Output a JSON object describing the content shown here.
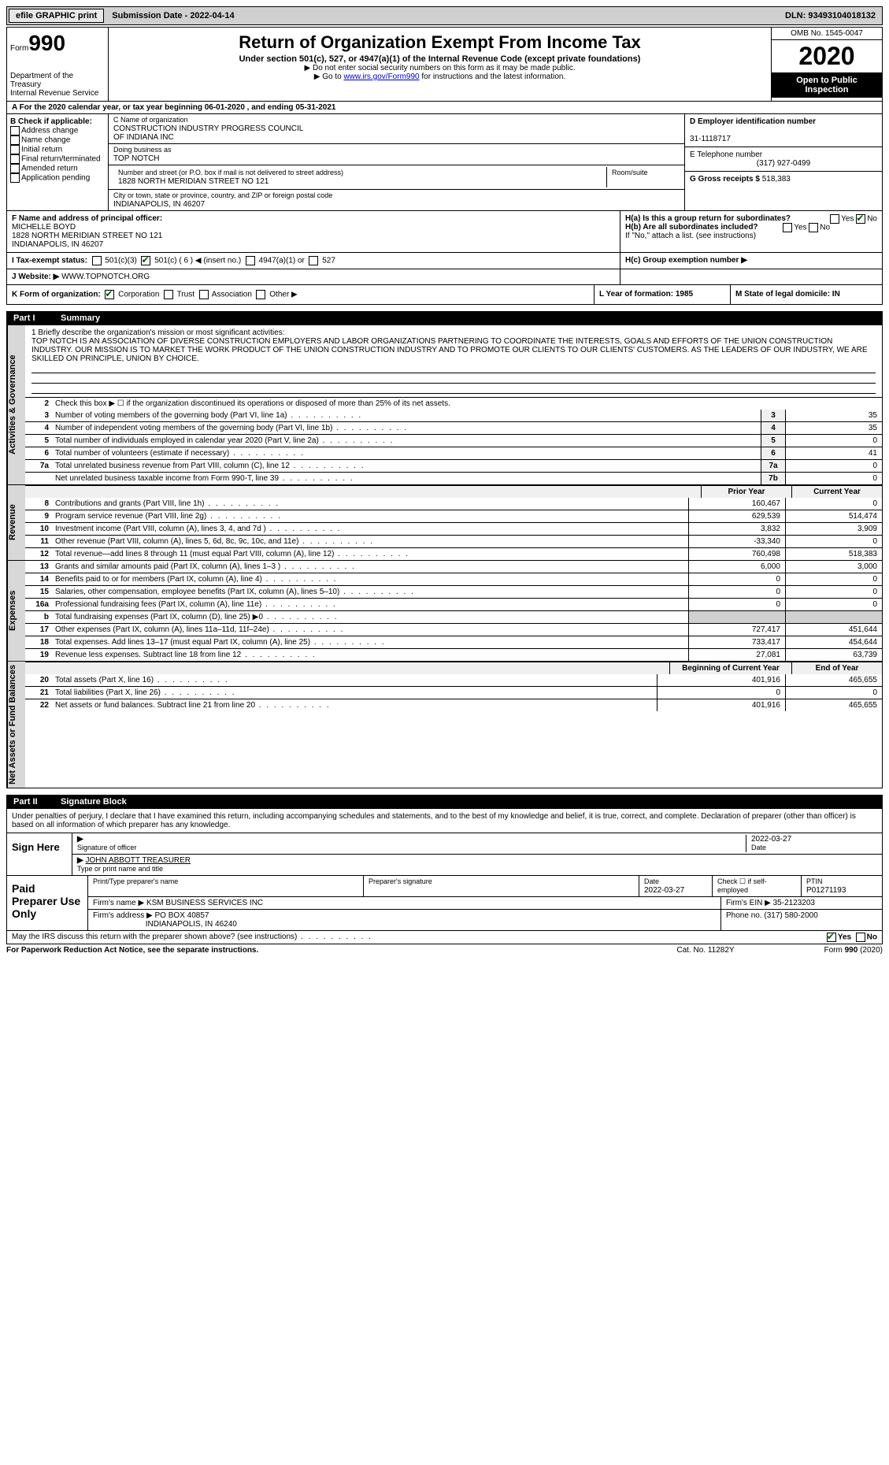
{
  "topbar": {
    "efile": "efile GRAPHIC print",
    "submission": "Submission Date - 2022-04-14",
    "dln": "DLN: 93493104018132"
  },
  "header": {
    "form_label": "Form",
    "form_no": "990",
    "dept": "Department of the Treasury",
    "irs": "Internal Revenue Service",
    "title": "Return of Organization Exempt From Income Tax",
    "sub1": "Under section 501(c), 527, or 4947(a)(1) of the Internal Revenue Code (except private foundations)",
    "sub2a": "▶ Do not enter social security numbers on this form as it may be made public.",
    "sub2b_pre": "▶ Go to ",
    "sub2b_link": "www.irs.gov/Form990",
    "sub2b_post": " for instructions and the latest information.",
    "omb": "OMB No. 1545-0047",
    "year": "2020",
    "inspection": "Open to Public Inspection"
  },
  "rowA": "A For the 2020 calendar year, or tax year beginning 06-01-2020   , and ending 05-31-2021",
  "colB": {
    "title": "B Check if applicable:",
    "items": [
      "Address change",
      "Name change",
      "Initial return",
      "Final return/terminated",
      "Amended return",
      "Application pending"
    ]
  },
  "colC": {
    "name_lbl": "C Name of organization",
    "name1": "CONSTRUCTION INDUSTRY PROGRESS COUNCIL",
    "name2": "OF INDIANA INC",
    "dba_lbl": "Doing business as",
    "dba": "TOP NOTCH",
    "addr_lbl": "Number and street (or P.O. box if mail is not delivered to street address)",
    "addr": "1828 NORTH MERIDIAN STREET NO 121",
    "room_lbl": "Room/suite",
    "city_lbl": "City or town, state or province, country, and ZIP or foreign postal code",
    "city": "INDIANAPOLIS, IN  46207"
  },
  "colD": {
    "ein_lbl": "D Employer identification number",
    "ein": "31-1118717",
    "tel_lbl": "E Telephone number",
    "tel": "(317) 927-0499",
    "gross_lbl": "G Gross receipts $",
    "gross": "518,383"
  },
  "colF": {
    "lbl": "F Name and address of principal officer:",
    "name": "MICHELLE BOYD",
    "addr1": "1828 NORTH MERIDIAN STREET NO 121",
    "addr2": "INDIANAPOLIS, IN  46207"
  },
  "colH": {
    "ha": "H(a)  Is this a group return for subordinates?",
    "hb": "H(b)  Are all subordinates included?",
    "hb_note": "If \"No,\" attach a list. (see instructions)",
    "hc": "H(c)  Group exemption number ▶",
    "yes": "Yes",
    "no": "No"
  },
  "rowI": {
    "lbl": "I  Tax-exempt status:",
    "o1": "501(c)(3)",
    "o2": "501(c) ( 6 ) ◀ (insert no.)",
    "o3": "4947(a)(1) or",
    "o4": "527"
  },
  "rowJ": {
    "lbl": "J  Website: ▶",
    "val": "WWW.TOPNOTCH.ORG"
  },
  "rowK": {
    "lbl": "K Form of organization:",
    "o1": "Corporation",
    "o2": "Trust",
    "o3": "Association",
    "o4": "Other ▶",
    "L": "L Year of formation: 1985",
    "M": "M State of legal domicile: IN"
  },
  "part1": {
    "label": "Part I",
    "title": "Summary"
  },
  "mission": {
    "lbl": "1  Briefly describe the organization's mission or most significant activities:",
    "text": "TOP NOTCH IS AN ASSOCIATION OF DIVERSE CONSTRUCTION EMPLOYERS AND LABOR ORGANIZATIONS PARTNERING TO COORDINATE THE INTERESTS, GOALS AND EFFORTS OF THE UNION CONSTRUCTION INDUSTRY. OUR MISSION IS TO MARKET THE WORK PRODUCT OF THE UNION CONSTRUCTION INDUSTRY AND TO PROMOTE OUR CLIENTS TO OUR CLIENTS' CUSTOMERS. AS THE LEADERS OF OUR INDUSTRY, WE ARE SKILLED ON PRINCIPLE, UNION BY CHOICE."
  },
  "gov": {
    "l2": "Check this box ▶ ☐  if the organization discontinued its operations or disposed of more than 25% of its net assets.",
    "rows": [
      {
        "n": "3",
        "d": "Number of voting members of the governing body (Part VI, line 1a)",
        "b": "3",
        "v": "35"
      },
      {
        "n": "4",
        "d": "Number of independent voting members of the governing body (Part VI, line 1b)",
        "b": "4",
        "v": "35"
      },
      {
        "n": "5",
        "d": "Total number of individuals employed in calendar year 2020 (Part V, line 2a)",
        "b": "5",
        "v": "0"
      },
      {
        "n": "6",
        "d": "Total number of volunteers (estimate if necessary)",
        "b": "6",
        "v": "41"
      },
      {
        "n": "7a",
        "d": "Total unrelated business revenue from Part VIII, column (C), line 12",
        "b": "7a",
        "v": "0"
      },
      {
        "n": "",
        "d": "Net unrelated business taxable income from Form 990-T, line 39",
        "b": "7b",
        "v": "0"
      }
    ]
  },
  "rev": {
    "hdr_prior": "Prior Year",
    "hdr_curr": "Current Year",
    "rows": [
      {
        "n": "8",
        "d": "Contributions and grants (Part VIII, line 1h)",
        "p": "160,467",
        "c": "0"
      },
      {
        "n": "9",
        "d": "Program service revenue (Part VIII, line 2g)",
        "p": "629,539",
        "c": "514,474"
      },
      {
        "n": "10",
        "d": "Investment income (Part VIII, column (A), lines 3, 4, and 7d )",
        "p": "3,832",
        "c": "3,909"
      },
      {
        "n": "11",
        "d": "Other revenue (Part VIII, column (A), lines 5, 6d, 8c, 9c, 10c, and 11e)",
        "p": "-33,340",
        "c": "0"
      },
      {
        "n": "12",
        "d": "Total revenue—add lines 8 through 11 (must equal Part VIII, column (A), line 12)",
        "p": "760,498",
        "c": "518,383"
      }
    ]
  },
  "exp": {
    "rows": [
      {
        "n": "13",
        "d": "Grants and similar amounts paid (Part IX, column (A), lines 1–3 )",
        "p": "6,000",
        "c": "3,000"
      },
      {
        "n": "14",
        "d": "Benefits paid to or for members (Part IX, column (A), line 4)",
        "p": "0",
        "c": "0"
      },
      {
        "n": "15",
        "d": "Salaries, other compensation, employee benefits (Part IX, column (A), lines 5–10)",
        "p": "0",
        "c": "0"
      },
      {
        "n": "16a",
        "d": "Professional fundraising fees (Part IX, column (A), line 11e)",
        "p": "0",
        "c": "0"
      },
      {
        "n": "b",
        "d": "Total fundraising expenses (Part IX, column (D), line 25) ▶0",
        "p": "",
        "c": "",
        "shaded": true
      },
      {
        "n": "17",
        "d": "Other expenses (Part IX, column (A), lines 11a–11d, 11f–24e)",
        "p": "727,417",
        "c": "451,644"
      },
      {
        "n": "18",
        "d": "Total expenses. Add lines 13–17 (must equal Part IX, column (A), line 25)",
        "p": "733,417",
        "c": "454,644"
      },
      {
        "n": "19",
        "d": "Revenue less expenses. Subtract line 18 from line 12",
        "p": "27,081",
        "c": "63,739"
      }
    ]
  },
  "net": {
    "hdr_prior": "Beginning of Current Year",
    "hdr_curr": "End of Year",
    "rows": [
      {
        "n": "20",
        "d": "Total assets (Part X, line 16)",
        "p": "401,916",
        "c": "465,655"
      },
      {
        "n": "21",
        "d": "Total liabilities (Part X, line 26)",
        "p": "0",
        "c": "0"
      },
      {
        "n": "22",
        "d": "Net assets or fund balances. Subtract line 21 from line 20",
        "p": "401,916",
        "c": "465,655"
      }
    ]
  },
  "sidelabels": {
    "gov": "Activities & Governance",
    "rev": "Revenue",
    "exp": "Expenses",
    "net": "Net Assets or Fund Balances"
  },
  "part2": {
    "label": "Part II",
    "title": "Signature Block"
  },
  "sig": {
    "intro": "Under penalties of perjury, I declare that I have examined this return, including accompanying schedules and statements, and to the best of my knowledge and belief, it is true, correct, and complete. Declaration of preparer (other than officer) is based on all information of which preparer has any knowledge.",
    "sign_here": "Sign Here",
    "sig_of_officer": "Signature of officer",
    "date_lbl": "Date",
    "date": "2022-03-27",
    "name": "JOHN ABBOTT TREASURER",
    "name_lbl": "Type or print name and title"
  },
  "prep": {
    "lbl": "Paid Preparer Use Only",
    "h_name": "Print/Type preparer's name",
    "h_sig": "Preparer's signature",
    "h_date": "Date",
    "date": "2022-03-27",
    "h_check": "Check ☐ if self-employed",
    "h_ptin": "PTIN",
    "ptin": "P01271193",
    "firm_name_lbl": "Firm's name    ▶",
    "firm_name": "KSM BUSINESS SERVICES INC",
    "firm_ein_lbl": "Firm's EIN ▶",
    "firm_ein": "35-2123203",
    "firm_addr_lbl": "Firm's address ▶",
    "firm_addr1": "PO BOX 40857",
    "firm_addr2": "INDIANAPOLIS, IN  46240",
    "phone_lbl": "Phone no.",
    "phone": "(317) 580-2000"
  },
  "discuss": {
    "q": "May the IRS discuss this return with the preparer shown above? (see instructions)",
    "yes": "Yes",
    "no": "No"
  },
  "footer": {
    "l": "For Paperwork Reduction Act Notice, see the separate instructions.",
    "c": "Cat. No. 11282Y",
    "r": "Form 990 (2020)"
  }
}
